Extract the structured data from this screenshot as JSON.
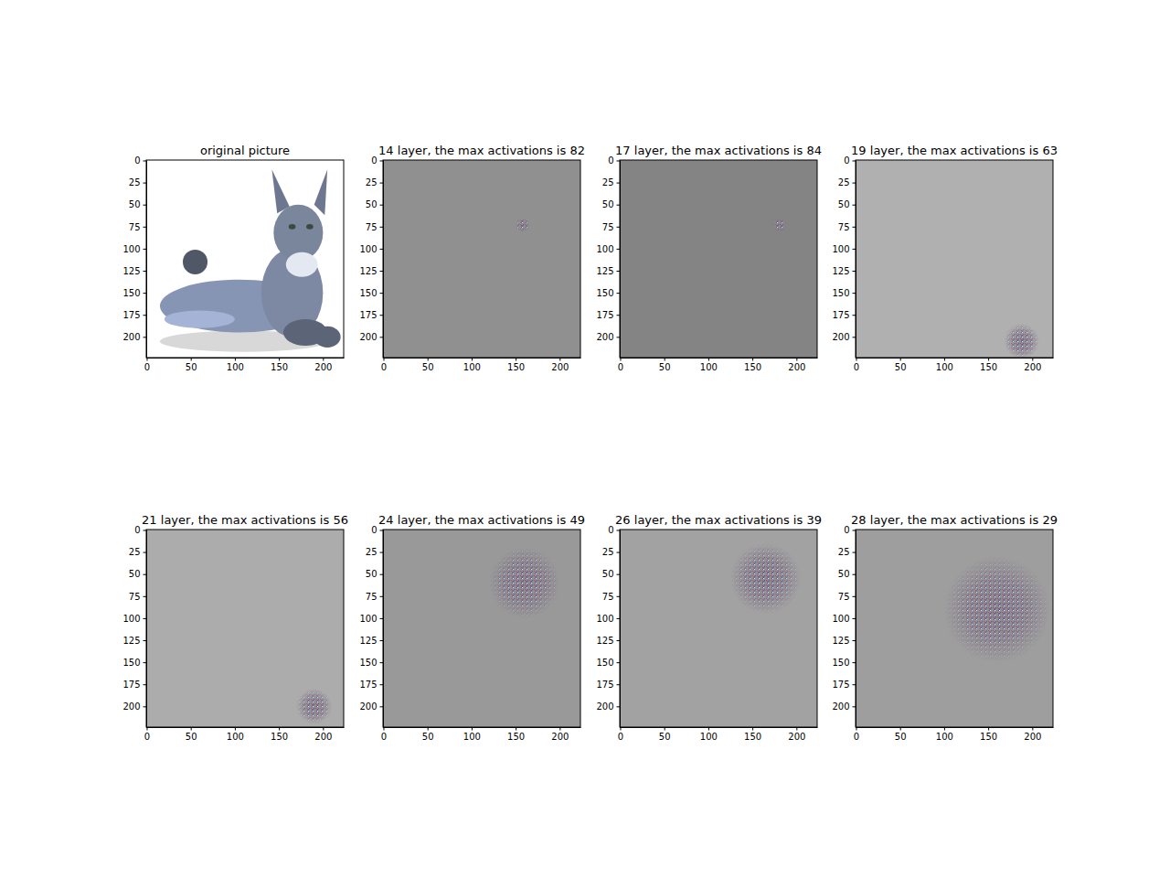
{
  "chart_data": [
    {
      "type": "image",
      "title": "original picture",
      "color": "#ffffff",
      "xlim": [
        -0.5,
        223.5
      ],
      "ylim": [
        223.5,
        -0.5
      ],
      "xticks": [
        0,
        50,
        100,
        150,
        200
      ],
      "yticks": [
        0,
        25,
        50,
        75,
        100,
        125,
        150,
        175,
        200
      ]
    },
    {
      "type": "image",
      "title": "14 layer, the max activations is 82",
      "color": "#909090",
      "xlim": [
        -0.5,
        223.5
      ],
      "ylim": [
        223.5,
        -0.5
      ],
      "xticks": [
        0,
        50,
        100,
        150,
        200
      ],
      "yticks": [
        0,
        25,
        50,
        75,
        100,
        125,
        150,
        175,
        200
      ],
      "x": [
        158
      ],
      "values": [
        73
      ],
      "sizes": [
        8
      ]
    },
    {
      "type": "image",
      "title": "17 layer, the max activations is 84",
      "color": "#848484",
      "xlim": [
        -0.5,
        223.5
      ],
      "ylim": [
        223.5,
        -0.5
      ],
      "xticks": [
        0,
        50,
        100,
        150,
        200
      ],
      "yticks": [
        0,
        25,
        50,
        75,
        100,
        125,
        150,
        175,
        200
      ],
      "x": [
        181
      ],
      "values": [
        73
      ],
      "sizes": [
        8
      ]
    },
    {
      "type": "image",
      "title": "19 layer, the max activations is 63",
      "color": "#b0b0b0",
      "xlim": [
        -0.5,
        223.5
      ],
      "ylim": [
        223.5,
        -0.5
      ],
      "xticks": [
        0,
        50,
        100,
        150,
        200
      ],
      "yticks": [
        0,
        25,
        50,
        75,
        100,
        125,
        150,
        175,
        200
      ],
      "x": [
        188
      ],
      "values": [
        205
      ],
      "sizes": [
        20
      ]
    },
    {
      "type": "image",
      "title": "21 layer, the max activations is 56",
      "color": "#acacac",
      "xlim": [
        -0.5,
        223.5
      ],
      "ylim": [
        223.5,
        -0.5
      ],
      "xticks": [
        0,
        50,
        100,
        150,
        200
      ],
      "yticks": [
        0,
        25,
        50,
        75,
        100,
        125,
        150,
        175,
        200
      ],
      "x": [
        190
      ],
      "values": [
        200
      ],
      "sizes": [
        20
      ]
    },
    {
      "type": "image",
      "title": "24 layer, the max activations is 49",
      "color": "#999999",
      "xlim": [
        -0.5,
        223.5
      ],
      "ylim": [
        223.5,
        -0.5
      ],
      "xticks": [
        0,
        50,
        100,
        150,
        200
      ],
      "yticks": [
        0,
        25,
        50,
        75,
        100,
        125,
        150,
        175,
        200
      ],
      "x": [
        160
      ],
      "values": [
        60
      ],
      "sizes": [
        40
      ]
    },
    {
      "type": "image",
      "title": "26 layer, the max activations is 39",
      "color": "#a2a2a2",
      "xlim": [
        -0.5,
        223.5
      ],
      "ylim": [
        223.5,
        -0.5
      ],
      "xticks": [
        0,
        50,
        100,
        150,
        200
      ],
      "yticks": [
        0,
        25,
        50,
        75,
        100,
        125,
        150,
        175,
        200
      ],
      "x": [
        165
      ],
      "values": [
        55
      ],
      "sizes": [
        40
      ]
    },
    {
      "type": "image",
      "title": "28 layer, the max activations is 29",
      "color": "#9e9e9e",
      "xlim": [
        -0.5,
        223.5
      ],
      "ylim": [
        223.5,
        -0.5
      ],
      "xticks": [
        0,
        50,
        100,
        150,
        200
      ],
      "yticks": [
        0,
        25,
        50,
        75,
        100,
        125,
        150,
        175,
        200
      ],
      "x": [
        160
      ],
      "values": [
        90
      ],
      "sizes": [
        60
      ]
    }
  ]
}
